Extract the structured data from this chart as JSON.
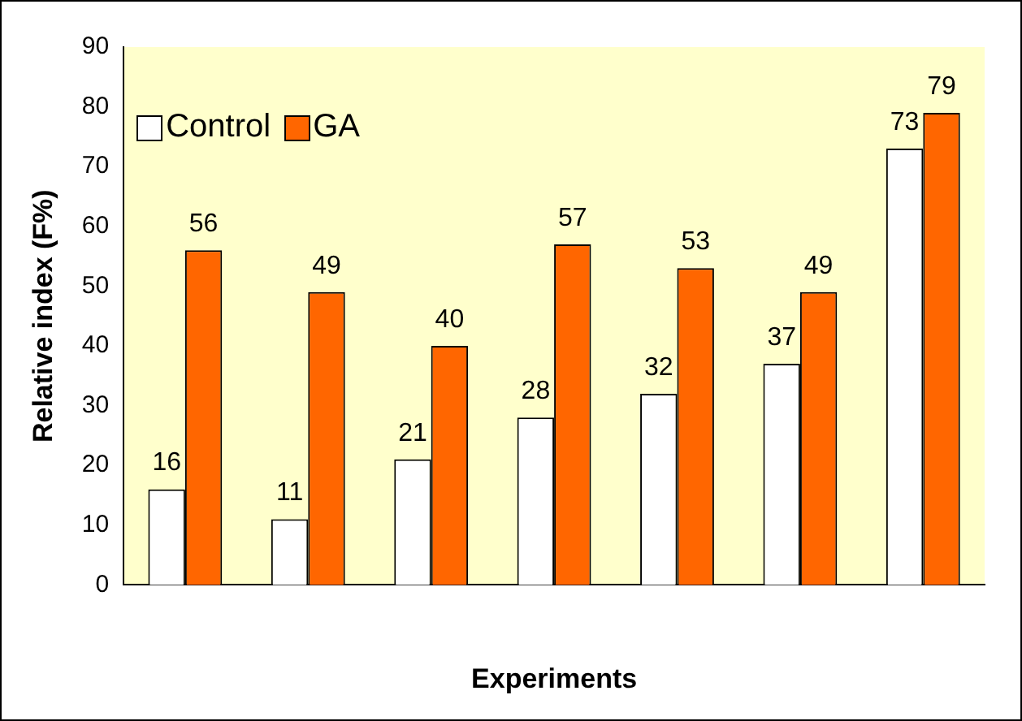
{
  "chart_data": {
    "type": "bar",
    "xlabel": "Experiments",
    "ylabel": "Relative index (F%)",
    "categories": [
      null,
      null,
      null,
      null,
      null,
      null,
      null
    ],
    "series": [
      {
        "name": "Control",
        "color": "#ffffff",
        "values": [
          16,
          11,
          21,
          28,
          32,
          37,
          73
        ]
      },
      {
        "name": "GA",
        "color": "#ff6600",
        "values": [
          56,
          49,
          40,
          57,
          53,
          49,
          79
        ]
      }
    ],
    "ylim": [
      0,
      90
    ],
    "yticks": [
      0,
      10,
      20,
      30,
      40,
      50,
      60,
      70,
      80,
      90
    ],
    "grid": false,
    "legend": "top left",
    "data_labels": true
  }
}
